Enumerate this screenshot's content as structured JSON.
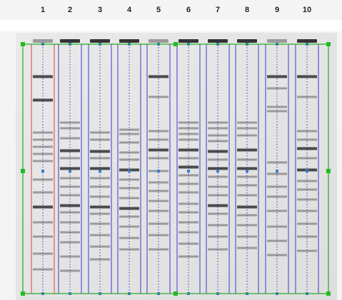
{
  "lane_labels": [
    "1",
    "2",
    "3",
    "4",
    "5",
    "6",
    "7",
    "8",
    "9",
    "10"
  ]
}
